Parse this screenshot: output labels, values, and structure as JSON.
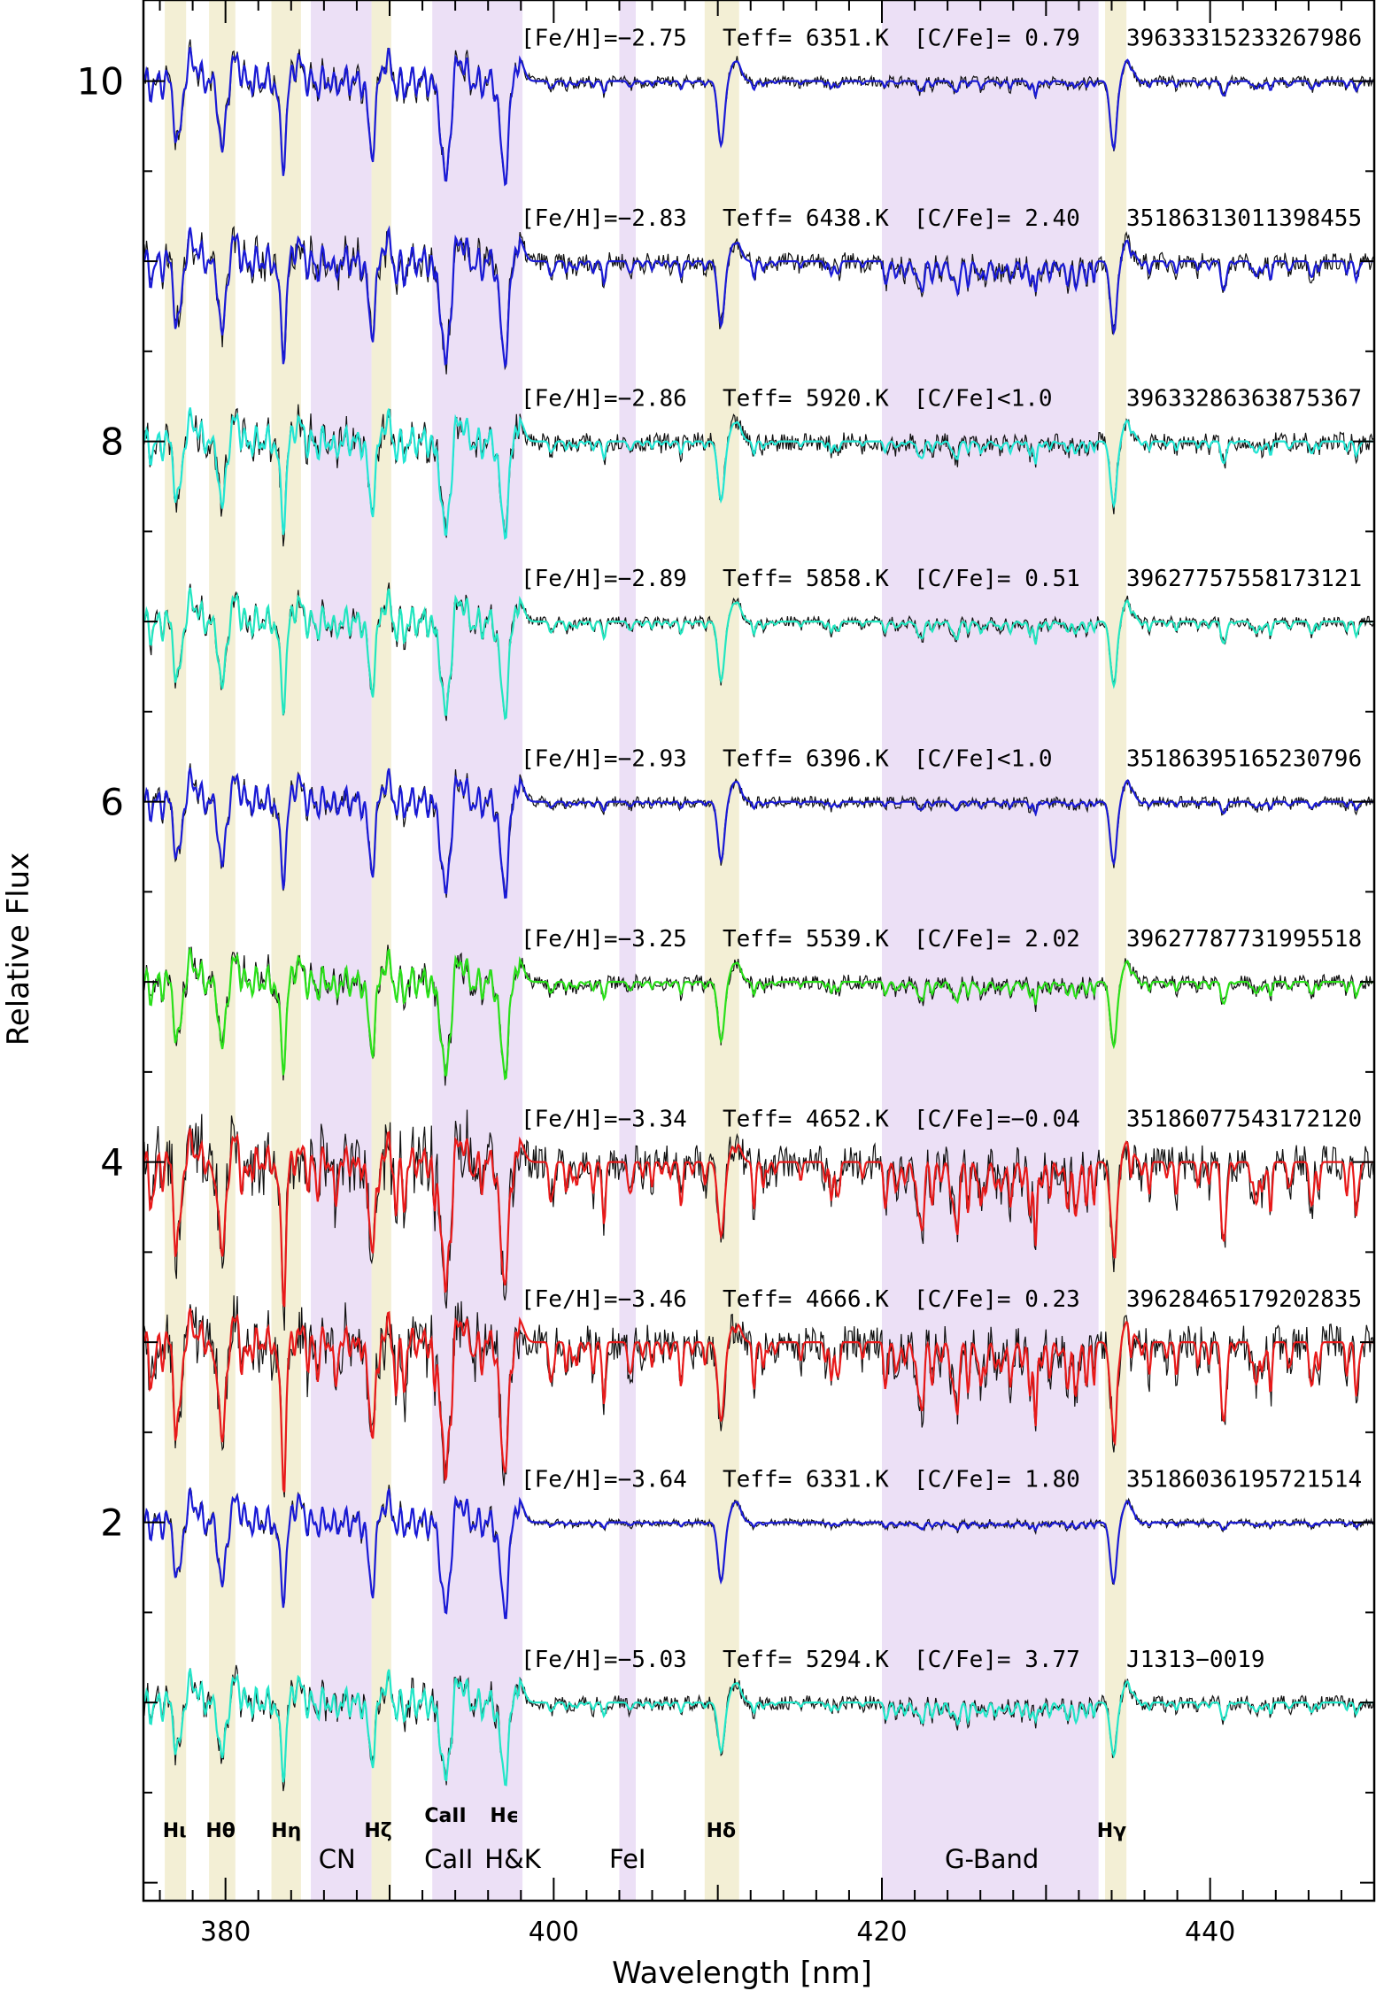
{
  "chart_data": {
    "type": "line",
    "title": "",
    "xlabel": "Wavelength [nm]",
    "ylabel": "Relative Flux",
    "xlim": [
      375,
      450
    ],
    "ylim": [
      -0.1,
      10.45
    ],
    "x_ticks": [
      "380",
      "400",
      "420",
      "440"
    ],
    "x_tick_values": [
      380,
      400,
      420,
      440
    ],
    "y_ticks": [
      "2",
      "4",
      "6",
      "8",
      "10"
    ],
    "y_tick_values": [
      2,
      4,
      6,
      8,
      10
    ],
    "grid": false,
    "shaded_regions": [
      {
        "label": "Hι",
        "range": [
          376.3,
          377.6
        ],
        "color": "#f3efd5"
      },
      {
        "label": "Hθ",
        "range": [
          379.0,
          380.6
        ],
        "color": "#f3efd5"
      },
      {
        "label": "Hη",
        "range": [
          382.8,
          384.6
        ],
        "color": "#f3efd5"
      },
      {
        "label": "CN",
        "range": [
          385.2,
          388.9
        ],
        "color": "#ece0f6"
      },
      {
        "label": "Hζ",
        "range": [
          388.9,
          390.1
        ],
        "color": "#f3efd5"
      },
      {
        "label": "CaII H&K",
        "range": [
          392.6,
          398.1
        ],
        "color": "#ece0f6"
      },
      {
        "label": "FeI",
        "range": [
          404.0,
          405.0
        ],
        "color": "#ece0f6"
      },
      {
        "label": "Hδ",
        "range": [
          409.2,
          411.3
        ],
        "color": "#f3efd5"
      },
      {
        "label": "G-Band",
        "range": [
          420.0,
          433.2
        ],
        "color": "#ece0f6"
      },
      {
        "label": "Hγ",
        "range": [
          433.6,
          434.9
        ],
        "color": "#f3efd5"
      }
    ],
    "line_labels": [
      {
        "text": "Hι",
        "x": 376.9
      },
      {
        "text": "Hθ",
        "x": 379.7
      },
      {
        "text": "Hη",
        "x": 383.7
      },
      {
        "text": "Hζ",
        "x": 389.3
      },
      {
        "text": "CaII",
        "x": 393.4
      },
      {
        "text": "Hϵ",
        "x": 397.0
      },
      {
        "text": "Hδ",
        "x": 410.2
      },
      {
        "text": "Hγ",
        "x": 434.0
      }
    ],
    "band_labels": [
      {
        "text": "CN",
        "x": 386.8
      },
      {
        "text": "CaII",
        "x": 393.6
      },
      {
        "text": "H&K",
        "x": 397.5
      },
      {
        "text": "FeI",
        "x": 404.5
      },
      {
        "text": "G-Band",
        "x": 426.7
      }
    ],
    "absorption_lines": [
      {
        "x": 377.1,
        "strength": 0.55,
        "kind": "H"
      },
      {
        "x": 379.8,
        "strength": 0.6,
        "kind": "H"
      },
      {
        "x": 383.5,
        "strength": 0.62,
        "kind": "H"
      },
      {
        "x": 388.9,
        "strength": 0.62,
        "kind": "H"
      },
      {
        "x": 393.4,
        "strength": 0.85,
        "kind": "Ca"
      },
      {
        "x": 397.0,
        "strength": 0.8,
        "kind": "Ca"
      },
      {
        "x": 404.6,
        "strength": 0.18,
        "kind": "metal"
      },
      {
        "x": 410.2,
        "strength": 0.55,
        "kind": "H"
      },
      {
        "x": 434.1,
        "strength": 0.55,
        "kind": "H"
      }
    ],
    "series": [
      {
        "offset": 10,
        "color": "#1a1ad6",
        "feh": "[Fe/H]=−2.75",
        "teff": "Teff= 6351.K",
        "cfe": "[C/Fe]= 0.79",
        "id": "39633315233267986",
        "depth": 0.65,
        "metal": 0.1,
        "gband": 0.0,
        "noise": 0.03
      },
      {
        "offset": 9,
        "color": "#1a1ad6",
        "feh": "[Fe/H]=−2.83",
        "teff": "Teff= 6438.K",
        "cfe": "[C/Fe]= 2.40",
        "id": "35186313011398455",
        "depth": 0.65,
        "metal": 0.2,
        "gband": 0.25,
        "noise": 0.05
      },
      {
        "offset": 8,
        "color": "#22e6d4",
        "feh": "[Fe/H]=−2.86",
        "teff": "Teff= 5920.K",
        "cfe": "[C/Fe]<1.0",
        "id": "39633286363875367",
        "depth": 0.6,
        "metal": 0.15,
        "gband": 0.05,
        "noise": 0.05
      },
      {
        "offset": 7,
        "color": "#22e6c0",
        "feh": "[Fe/H]=−2.89",
        "teff": "Teff= 5858.K",
        "cfe": "[C/Fe]= 0.51",
        "id": "39627757558173121",
        "depth": 0.6,
        "metal": 0.15,
        "gband": 0.05,
        "noise": 0.03
      },
      {
        "offset": 6,
        "color": "#1a1ad6",
        "feh": "[Fe/H]=−2.93",
        "teff": "Teff= 6396.K",
        "cfe": "[C/Fe]<1.0",
        "id": "35186395165230796",
        "depth": 0.6,
        "metal": 0.08,
        "gband": 0.0,
        "noise": 0.03
      },
      {
        "offset": 5,
        "color": "#2ae01a",
        "feh": "[Fe/H]=−3.25",
        "teff": "Teff= 5539.K",
        "cfe": "[C/Fe]= 2.02",
        "id": "39627787731995518",
        "depth": 0.6,
        "metal": 0.15,
        "gband": 0.1,
        "noise": 0.04
      },
      {
        "offset": 4,
        "color": "#e81a1a",
        "feh": "[Fe/H]=−3.34",
        "teff": "Teff= 4652.K",
        "cfe": "[C/Fe]=−0.04",
        "id": "35186077543172120",
        "depth": 0.75,
        "metal": 0.55,
        "gband": 0.35,
        "noise": 0.1
      },
      {
        "offset": 3,
        "color": "#e81a1a",
        "feh": "[Fe/H]=−3.46",
        "teff": "Teff= 4666.K",
        "cfe": "[C/Fe]= 0.23",
        "id": "39628465179202835",
        "depth": 0.8,
        "metal": 0.55,
        "gband": 0.35,
        "noise": 0.1
      },
      {
        "offset": 2,
        "color": "#1a1ad6",
        "feh": "[Fe/H]=−3.64",
        "teff": "Teff= 6331.K",
        "cfe": "[C/Fe]= 1.80",
        "id": "35186036195721514",
        "depth": 0.6,
        "metal": 0.05,
        "gband": 0.05,
        "noise": 0.02
      },
      {
        "offset": 1,
        "color": "#22e6c8",
        "feh": "[Fe/H]=−5.03",
        "teff": "Teff= 5294.K",
        "cfe": "[C/Fe]= 3.77",
        "id": "J1313−0019",
        "depth": 0.5,
        "metal": 0.12,
        "gband": 0.2,
        "noise": 0.04
      }
    ]
  }
}
